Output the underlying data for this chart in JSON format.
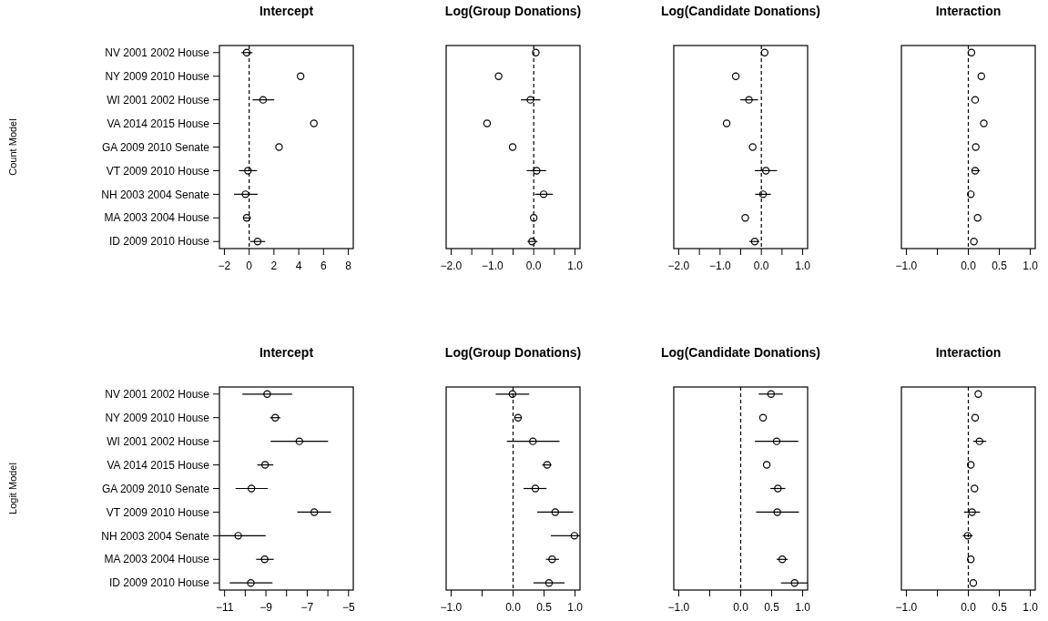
{
  "chart_data": [
    {
      "type": "scatter",
      "title": "Intercept",
      "ylabel": "Count Model",
      "orientation": "horizontal",
      "marker": "circle",
      "color": "#000000",
      "categories": [
        "NV 2001 2002 House",
        "NY 2009 2010 House",
        "WI 2001 2002 House",
        "VA 2014 2015 House",
        "GA 2009 2010 Senate",
        "VT 2009 2010 House",
        "NH 2003 2004 Senate",
        "MA 2003 2004 House",
        "ID 2009 2010 House"
      ],
      "values": [
        -0.2,
        4.15,
        1.12,
        5.22,
        2.41,
        -0.1,
        -0.3,
        -0.2,
        0.68
      ],
      "errors": [
        [
          -0.63,
          0.27
        ],
        null,
        [
          0.27,
          2.02
        ],
        null,
        null,
        [
          -0.83,
          0.63
        ],
        [
          -1.22,
          0.68
        ],
        [
          -0.49,
          0.15
        ],
        [
          0.07,
          1.29
        ]
      ],
      "xlim": [
        -2.4,
        8.4
      ],
      "xticks": [
        -2,
        0,
        2,
        4,
        6,
        8
      ],
      "ref_lines": [
        {
          "axis": "x",
          "value": 0,
          "line_style": "dashed"
        }
      ]
    },
    {
      "type": "scatter",
      "title": "Log(Group Donations)",
      "orientation": "horizontal",
      "marker": "circle",
      "color": "#000000",
      "tick_labels": "x",
      "categories": [
        "NV 2001 2002 House",
        "NY 2009 2010 House",
        "WI 2001 2002 House",
        "VA 2014 2015 House",
        "GA 2009 2010 Senate",
        "VT 2009 2010 House",
        "NH 2003 2004 Senate",
        "MA 2003 2004 House",
        "ID 2009 2010 House"
      ],
      "values": [
        0.05,
        -0.85,
        -0.08,
        -1.13,
        -0.51,
        0.07,
        0.24,
        0.0,
        -0.04
      ],
      "errors": [
        null,
        null,
        [
          -0.31,
          0.16
        ],
        null,
        null,
        [
          -0.17,
          0.3
        ],
        [
          0.03,
          0.46
        ],
        null,
        [
          -0.15,
          0.09
        ]
      ],
      "xlim": [
        -2.12,
        1.12
      ],
      "xticks": [
        {
          "value": -2,
          "label": "−2.0"
        },
        {
          "value": -1.5,
          "label": null
        },
        {
          "value": -1,
          "label": "−1.0"
        },
        {
          "value": -0.5,
          "label": null
        },
        {
          "value": 0,
          "label": "0.0"
        },
        {
          "value": 0.5,
          "label": null
        },
        {
          "value": 1,
          "label": "1.0"
        }
      ],
      "ref_lines": [
        {
          "axis": "x",
          "value": 0,
          "line_style": "dashed"
        }
      ]
    },
    {
      "type": "scatter",
      "title": "Log(Candidate Donations)",
      "orientation": "horizontal",
      "marker": "circle",
      "color": "#000000",
      "tick_labels": "x",
      "categories": [
        "NV 2001 2002 House",
        "NY 2009 2010 House",
        "WI 2001 2002 House",
        "VA 2014 2015 House",
        "GA 2009 2010 Senate",
        "VT 2009 2010 House",
        "NH 2003 2004 Senate",
        "MA 2003 2004 House",
        "ID 2009 2010 House"
      ],
      "values": [
        0.08,
        -0.62,
        -0.3,
        -0.84,
        -0.21,
        0.11,
        0.04,
        -0.39,
        -0.16
      ],
      "errors": [
        null,
        null,
        [
          -0.51,
          -0.08
        ],
        null,
        null,
        [
          -0.16,
          0.38
        ],
        [
          -0.15,
          0.23
        ],
        null,
        [
          -0.29,
          -0.05
        ]
      ],
      "xlim": [
        -2.12,
        1.12
      ],
      "xticks": [
        {
          "value": -2,
          "label": "−2.0"
        },
        {
          "value": -1.5,
          "label": null
        },
        {
          "value": -1,
          "label": "−1.0"
        },
        {
          "value": -0.5,
          "label": null
        },
        {
          "value": 0,
          "label": "0.0"
        },
        {
          "value": 0.5,
          "label": null
        },
        {
          "value": 1,
          "label": "1.0"
        }
      ],
      "ref_lines": [
        {
          "axis": "x",
          "value": 0,
          "line_style": "dashed"
        }
      ]
    },
    {
      "type": "scatter",
      "title": "Interaction",
      "orientation": "horizontal",
      "marker": "circle",
      "color": "#000000",
      "tick_labels": "x",
      "categories": [
        "NV 2001 2002 House",
        "NY 2009 2010 House",
        "WI 2001 2002 House",
        "VA 2014 2015 House",
        "GA 2009 2010 Senate",
        "VT 2009 2010 House",
        "NH 2003 2004 Senate",
        "MA 2003 2004 House",
        "ID 2009 2010 House"
      ],
      "values": [
        0.05,
        0.21,
        0.11,
        0.25,
        0.12,
        0.11,
        0.04,
        0.15,
        0.09
      ],
      "errors": [
        null,
        null,
        null,
        null,
        null,
        [
          0.05,
          0.19
        ],
        null,
        null,
        null
      ],
      "xlim": [
        -1.08,
        1.08
      ],
      "xticks": [
        {
          "value": -1,
          "label": "−1.0"
        },
        {
          "value": -0.5,
          "label": null
        },
        {
          "value": 0,
          "label": "0.0"
        },
        {
          "value": 0.5,
          "label": "0.5"
        },
        {
          "value": 1,
          "label": "1.0"
        }
      ],
      "ref_lines": [
        {
          "axis": "x",
          "value": 0,
          "line_style": "dashed"
        }
      ]
    },
    {
      "type": "scatter",
      "title": "Intercept",
      "ylabel": "Logit Model",
      "orientation": "horizontal",
      "marker": "circle",
      "color": "#000000",
      "categories": [
        "NV 2001 2002 House",
        "NY 2009 2010 House",
        "WI 2001 2002 House",
        "VA 2014 2015 House",
        "GA 2009 2010 Senate",
        "VT 2009 2010 House",
        "NH 2003 2004 Senate",
        "MA 2003 2004 House",
        "ID 2009 2010 House"
      ],
      "values": [
        -8.94,
        -8.55,
        -7.38,
        -9.04,
        -9.7,
        -6.66,
        -10.34,
        -9.06,
        -9.73
      ],
      "errors": [
        [
          -10.14,
          -7.73
        ],
        [
          -8.8,
          -8.3
        ],
        [
          -8.77,
          -5.99
        ],
        [
          -9.42,
          -8.64
        ],
        [
          -10.47,
          -8.91
        ],
        [
          -7.48,
          -5.85
        ],
        [
          -11.25,
          -9.01
        ],
        [
          -9.47,
          -8.62
        ],
        [
          -10.75,
          -8.68
        ]
      ],
      "xlim": [
        -11.25,
        -4.77
      ],
      "xticks": [
        {
          "value": -11,
          "label": "−11"
        },
        {
          "value": -10,
          "label": null
        },
        {
          "value": -9,
          "label": "−9"
        },
        {
          "value": -8,
          "label": null
        },
        {
          "value": -7,
          "label": "−7"
        },
        {
          "value": -6,
          "label": null
        },
        {
          "value": -5,
          "label": "−5"
        }
      ]
    },
    {
      "type": "scatter",
      "title": "Log(Group Donations)",
      "orientation": "horizontal",
      "marker": "circle",
      "color": "#000000",
      "tick_labels": "x",
      "categories": [
        "NV 2001 2002 House",
        "NY 2009 2010 House",
        "WI 2001 2002 House",
        "VA 2014 2015 House",
        "GA 2009 2010 Senate",
        "VT 2009 2010 House",
        "NH 2003 2004 Senate",
        "MA 2003 2004 House",
        "ID 2009 2010 House"
      ],
      "values": [
        -0.01,
        0.08,
        0.32,
        0.55,
        0.36,
        0.68,
        0.99,
        0.63,
        0.58
      ],
      "errors": [
        [
          -0.28,
          0.26
        ],
        [
          0.02,
          0.14
        ],
        [
          -0.1,
          0.75
        ],
        [
          0.47,
          0.62
        ],
        [
          0.17,
          0.54
        ],
        [
          0.39,
          0.97
        ],
        [
          0.61,
          1.08
        ],
        [
          0.53,
          0.74
        ],
        [
          0.33,
          0.83
        ]
      ],
      "xlim": [
        -1.08,
        1.08
      ],
      "xticks": [
        {
          "value": -1,
          "label": "−1.0"
        },
        {
          "value": -0.5,
          "label": null
        },
        {
          "value": 0,
          "label": "0.0"
        },
        {
          "value": 0.5,
          "label": "0.5"
        },
        {
          "value": 1,
          "label": "1.0"
        }
      ],
      "ref_lines": [
        {
          "axis": "x",
          "value": 0,
          "line_style": "dashed"
        }
      ]
    },
    {
      "type": "scatter",
      "title": "Log(Candidate Donations)",
      "orientation": "horizontal",
      "marker": "circle",
      "color": "#000000",
      "tick_labels": "x",
      "categories": [
        "NV 2001 2002 House",
        "NY 2009 2010 House",
        "WI 2001 2002 House",
        "VA 2014 2015 House",
        "GA 2009 2010 Senate",
        "VT 2009 2010 House",
        "NH 2003 2004 Senate",
        "MA 2003 2004 House",
        "ID 2009 2010 House"
      ],
      "values": [
        0.49,
        0.36,
        0.58,
        0.42,
        0.6,
        0.59,
        null,
        0.67,
        0.87
      ],
      "errors": [
        [
          0.29,
          0.68
        ],
        null,
        [
          0.23,
          0.93
        ],
        null,
        [
          0.48,
          0.72
        ],
        [
          0.25,
          0.94
        ],
        null,
        [
          0.58,
          0.76
        ],
        [
          0.65,
          1.08
        ]
      ],
      "xlim": [
        -1.08,
        1.08
      ],
      "xticks": [
        {
          "value": -1,
          "label": "−1.0"
        },
        {
          "value": -0.5,
          "label": null
        },
        {
          "value": 0,
          "label": "0.0"
        },
        {
          "value": 0.5,
          "label": "0.5"
        },
        {
          "value": 1,
          "label": "1.0"
        }
      ],
      "ref_lines": [
        {
          "axis": "x",
          "value": 0,
          "line_style": "dashed"
        }
      ]
    },
    {
      "type": "scatter",
      "title": "Interaction",
      "orientation": "horizontal",
      "marker": "circle",
      "color": "#000000",
      "tick_labels": "x",
      "categories": [
        "NV 2001 2002 House",
        "NY 2009 2010 House",
        "WI 2001 2002 House",
        "VA 2014 2015 House",
        "GA 2009 2010 Senate",
        "VT 2009 2010 House",
        "NH 2003 2004 Senate",
        "MA 2003 2004 House",
        "ID 2009 2010 House"
      ],
      "values": [
        0.16,
        0.11,
        0.18,
        0.04,
        0.1,
        0.06,
        -0.01,
        0.04,
        0.08
      ],
      "errors": [
        null,
        null,
        [
          0.08,
          0.29
        ],
        null,
        null,
        [
          -0.07,
          0.19
        ],
        [
          -0.09,
          0.07
        ],
        null,
        null
      ],
      "xlim": [
        -1.08,
        1.08
      ],
      "xticks": [
        {
          "value": -1,
          "label": "−1.0"
        },
        {
          "value": -0.5,
          "label": null
        },
        {
          "value": 0,
          "label": "0.0"
        },
        {
          "value": 0.5,
          "label": "0.5"
        },
        {
          "value": 1,
          "label": "1.0"
        }
      ],
      "ref_lines": [
        {
          "axis": "x",
          "value": 0,
          "line_style": "dashed"
        }
      ]
    }
  ]
}
